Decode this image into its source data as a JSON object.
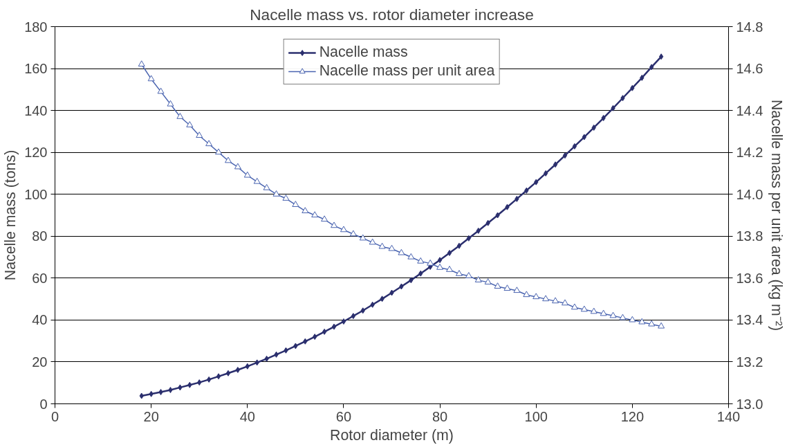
{
  "chart_data": {
    "type": "line",
    "title": "Nacelle mass vs. rotor diameter increase",
    "xlabel": "Rotor diameter (m)",
    "ylabel": "Nacelle mass (tons)",
    "y2label": "Nacelle mass per unit area (kg m⁻²)",
    "x": [
      18,
      20,
      22,
      24,
      26,
      28,
      30,
      32,
      34,
      36,
      38,
      40,
      42,
      44,
      46,
      48,
      50,
      52,
      54,
      56,
      58,
      60,
      62,
      64,
      66,
      68,
      70,
      72,
      74,
      76,
      78,
      80,
      82,
      84,
      86,
      88,
      90,
      92,
      94,
      96,
      98,
      100,
      102,
      104,
      106,
      108,
      110,
      112,
      114,
      116,
      118,
      120,
      122,
      124,
      126
    ],
    "series": [
      {
        "name": "Nacelle mass",
        "color": "#2b2f6e",
        "marker": "diamond",
        "values": [
          3.8,
          4.7,
          5.6,
          6.6,
          7.8,
          9.0,
          10.2,
          11.6,
          13.1,
          14.6,
          16.2,
          17.9,
          19.7,
          21.5,
          23.5,
          25.5,
          27.6,
          29.8,
          32.0,
          34.4,
          36.8,
          39.3,
          41.9,
          44.5,
          47.3,
          50.1,
          53.0,
          56.0,
          59.0,
          62.2,
          65.4,
          68.6,
          72.0,
          75.4,
          79.0,
          82.6,
          86.3,
          90.0,
          93.9,
          97.8,
          101.8,
          105.8,
          110.0,
          114.2,
          118.5,
          122.9,
          127.3,
          131.8,
          136.4,
          141.1,
          145.9,
          150.7,
          155.6,
          160.7,
          165.7
        ]
      },
      {
        "name": "Nacelle mass per unit area",
        "color": "#4a64b0",
        "marker": "triangle",
        "axis": "y2",
        "values": [
          14.62,
          14.55,
          14.49,
          14.43,
          14.37,
          14.33,
          14.28,
          14.24,
          14.2,
          14.16,
          14.13,
          14.09,
          14.06,
          14.03,
          14.0,
          13.98,
          13.95,
          13.92,
          13.9,
          13.88,
          13.85,
          13.83,
          13.81,
          13.79,
          13.77,
          13.75,
          13.74,
          13.72,
          13.7,
          13.68,
          13.67,
          13.65,
          13.64,
          13.62,
          13.61,
          13.59,
          13.58,
          13.56,
          13.55,
          13.54,
          13.52,
          13.51,
          13.5,
          13.49,
          13.48,
          13.46,
          13.45,
          13.44,
          13.43,
          13.42,
          13.41,
          13.4,
          13.39,
          13.38,
          13.37
        ]
      }
    ],
    "xlim": [
      0,
      140
    ],
    "xticks": [
      0,
      20,
      40,
      60,
      80,
      100,
      120,
      140
    ],
    "ylim": [
      0,
      180
    ],
    "yticks": [
      0,
      20,
      40,
      60,
      80,
      100,
      120,
      140,
      160,
      180
    ],
    "y2lim": [
      13.0,
      14.8
    ],
    "y2ticks": [
      {
        "value": 13.0,
        "label": "13.0"
      },
      {
        "value": 13.2,
        "label": "13.2"
      },
      {
        "value": 13.4,
        "label": "13.4"
      },
      {
        "value": 13.6,
        "label": "13.6"
      },
      {
        "value": 13.8,
        "label": "13.8"
      },
      {
        "value": 14.0,
        "label": "14.0"
      },
      {
        "value": 14.2,
        "label": "14.2"
      },
      {
        "value": 14.4,
        "label": "14.4"
      },
      {
        "value": 14.6,
        "label": "14.6"
      },
      {
        "value": 14.8,
        "label": "14.8"
      }
    ],
    "grid": "y",
    "legend": "top",
    "line_style": "solid"
  }
}
